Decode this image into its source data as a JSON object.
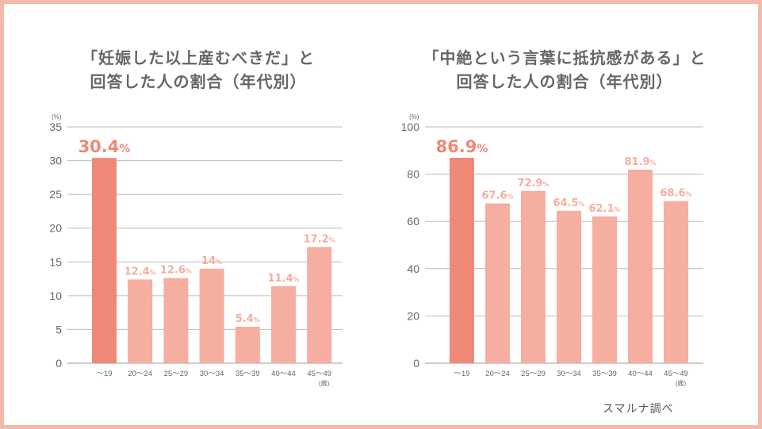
{
  "source": "スマルナ調べ",
  "chart_data": [
    {
      "type": "bar",
      "title_lines": [
        "「妊娠した以上産むべきだ」と",
        "回答した人の割合（年代別）"
      ],
      "unit_label": "(%)",
      "x_unit_label": "(歳)",
      "categories": [
        "〜19",
        "20〜24",
        "25〜29",
        "30〜34",
        "35〜39",
        "40〜44",
        "45〜49"
      ],
      "values": [
        30.4,
        12.4,
        12.6,
        14,
        5.4,
        11.4,
        17.2
      ],
      "value_labels": [
        "30.4",
        "12.4",
        "12.6",
        "14",
        "5.4",
        "11.4",
        "17.2"
      ],
      "percent_sign": "%",
      "ylim": [
        0,
        35
      ],
      "yticks": [
        0,
        5,
        10,
        15,
        20,
        25,
        30,
        35
      ],
      "grid": true,
      "colors": {
        "highlight": "#f08878",
        "bar": "#f5aea0",
        "grid": "#bbbbbb"
      }
    },
    {
      "type": "bar",
      "title_lines": [
        "「中絶という言葉に抵抗感がある」と",
        "回答した人の割合（年代別）"
      ],
      "unit_label": "(%)",
      "x_unit_label": "(歳)",
      "categories": [
        "〜19",
        "20〜24",
        "25〜29",
        "30〜34",
        "35〜39",
        "40〜44",
        "45〜49"
      ],
      "values": [
        86.9,
        67.6,
        72.9,
        64.5,
        62.1,
        81.9,
        68.6
      ],
      "value_labels": [
        "86.9",
        "67.6",
        "72.9",
        "64.5",
        "62.1",
        "81.9",
        "68.6"
      ],
      "percent_sign": "%",
      "ylim": [
        0,
        100
      ],
      "yticks": [
        0,
        20,
        40,
        60,
        80,
        100
      ],
      "grid": true,
      "colors": {
        "highlight": "#f08878",
        "bar": "#f5aea0",
        "grid": "#bbbbbb"
      }
    }
  ]
}
